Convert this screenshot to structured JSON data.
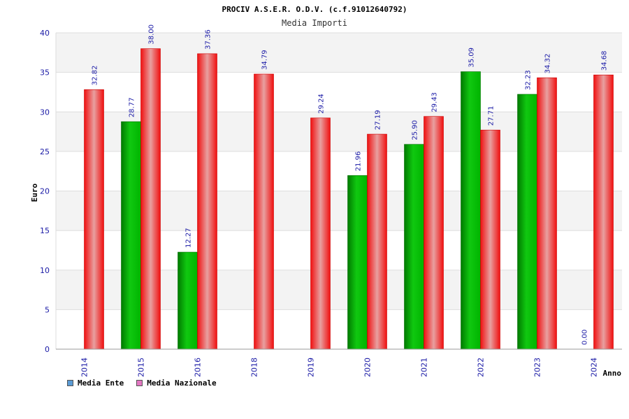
{
  "chart_data": {
    "type": "bar",
    "title": "PROCIV A.S.E.R. O.D.V. (c.f.91012640792)",
    "subtitle": "Media Importi",
    "xlabel": "Anno",
    "ylabel": "Euro",
    "ylim": [
      0,
      40
    ],
    "yticks": [
      "0",
      "5",
      "10",
      "15",
      "20",
      "25",
      "30",
      "35",
      "40"
    ],
    "categories": [
      "2014",
      "2015",
      "2016",
      "2018",
      "2019",
      "2020",
      "2021",
      "2022",
      "2023",
      "2024"
    ],
    "series": [
      {
        "name": "Media Ente",
        "color": "#00b000",
        "values": [
          null,
          28.77,
          12.27,
          null,
          null,
          21.96,
          25.9,
          35.09,
          32.23,
          0.0
        ],
        "labels": [
          "",
          "28.77",
          "12.27",
          "",
          "",
          "21.96",
          "25.90",
          "35.09",
          "32.23",
          "0.00"
        ]
      },
      {
        "name": "Media Nazionale",
        "color": "#ee1111",
        "values": [
          32.82,
          38.0,
          37.36,
          34.79,
          29.24,
          27.19,
          29.43,
          27.71,
          34.32,
          34.68
        ],
        "labels": [
          "32.82",
          "38.00",
          "37.36",
          "34.79",
          "29.24",
          "27.19",
          "29.43",
          "27.71",
          "34.32",
          "34.68"
        ]
      }
    ],
    "grid": true,
    "legend_position": "bottom-left"
  },
  "legend": [
    {
      "label": "Media Ente",
      "color": "#5b9bd5"
    },
    {
      "label": "Media Nazionale",
      "color": "#e377c2"
    }
  ]
}
